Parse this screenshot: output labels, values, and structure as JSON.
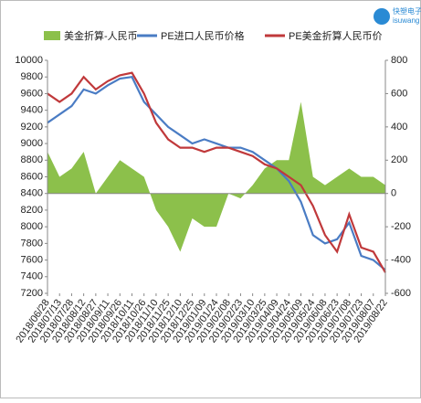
{
  "logo": {
    "name": "快塑电子",
    "sub": "isuwang"
  },
  "chart_data": {
    "type": "combo",
    "categories": [
      "2018/06/28",
      "2018/07/13",
      "2018/07/28",
      "2018/08/12",
      "2018/08/27",
      "2018/09/11",
      "2018/09/26",
      "2018/10/11",
      "2018/10/26",
      "2018/11/10",
      "2018/11/25",
      "2018/12/10",
      "2018/12/25",
      "2019/01/09",
      "2019/01/24",
      "2019/02/08",
      "2019/02/23",
      "2019/03/10",
      "2019/03/25",
      "2019/04/09",
      "2019/04/24",
      "2019/05/09",
      "2019/05/24",
      "2019/06/08",
      "2019/06/23",
      "2019/07/08",
      "2019/07/23",
      "2019/08/07",
      "2019/08/22"
    ],
    "series": [
      {
        "name": "美金折算-人民币",
        "color": "#8cc04b",
        "kind": "area",
        "axis": "y2",
        "values": [
          250,
          100,
          150,
          250,
          0,
          100,
          200,
          150,
          100,
          -100,
          -200,
          -350,
          -150,
          -200,
          -200,
          0,
          -30,
          50,
          150,
          200,
          200,
          550,
          100,
          50,
          100,
          150,
          100,
          100,
          50
        ]
      },
      {
        "name": "PE进口人民币价格",
        "color": "#4a7cc4",
        "kind": "line",
        "values": [
          9250,
          9350,
          9450,
          9650,
          9600,
          9700,
          9780,
          9800,
          9500,
          9350,
          9200,
          9100,
          9000,
          9050,
          9000,
          8950,
          8950,
          8900,
          8800,
          8700,
          8550,
          8300,
          7900,
          7800,
          7850,
          8050,
          7650,
          7600,
          7480
        ]
      },
      {
        "name": "PE美金折算人民币价",
        "color": "#c0393b",
        "kind": "line",
        "values": [
          9600,
          9500,
          9600,
          9800,
          9650,
          9750,
          9820,
          9850,
          9600,
          9250,
          9050,
          8950,
          8950,
          8900,
          8950,
          8950,
          8900,
          8850,
          8750,
          8700,
          8600,
          8500,
          8250,
          7900,
          7700,
          8150,
          7750,
          7700,
          7450
        ]
      }
    ],
    "ylim": [
      7200,
      10000
    ],
    "yticks": [
      7200,
      7400,
      7600,
      7800,
      8000,
      8200,
      8400,
      8600,
      8800,
      9000,
      9200,
      9400,
      9600,
      9800,
      10000
    ],
    "y2lim": [
      -600,
      800
    ],
    "y2ticks": [
      -600,
      -400,
      -200,
      0,
      200,
      400,
      600,
      800
    ],
    "grid": false,
    "legend": "top"
  }
}
